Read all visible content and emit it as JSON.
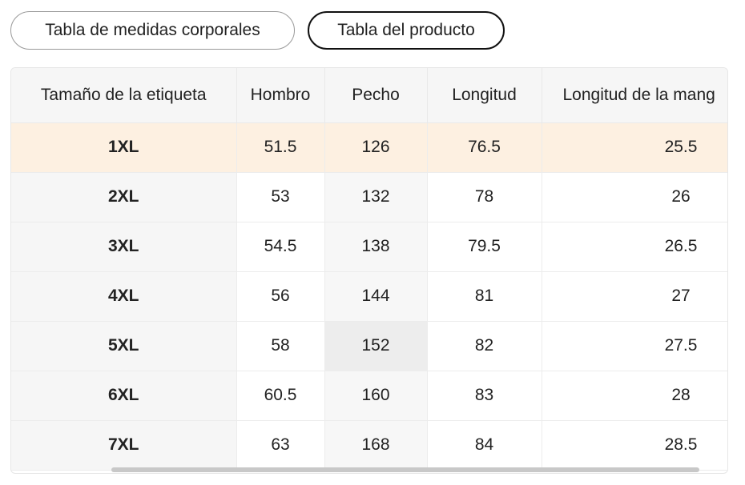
{
  "tabs": [
    {
      "label": "Tabla de medidas corporales",
      "active": false
    },
    {
      "label": "Tabla del producto",
      "active": true
    }
  ],
  "table": {
    "headers": [
      "Tamaño de la etiqueta",
      "Hombro",
      "Pecho",
      "Longitud",
      "Longitud de la mang"
    ],
    "rows": [
      [
        "1XL",
        "51.5",
        "126",
        "76.5",
        "25.5"
      ],
      [
        "2XL",
        "53",
        "132",
        "78",
        "26"
      ],
      [
        "3XL",
        "54.5",
        "138",
        "79.5",
        "26.5"
      ],
      [
        "4XL",
        "56",
        "144",
        "81",
        "27"
      ],
      [
        "5XL",
        "58",
        "152",
        "82",
        "27.5"
      ],
      [
        "6XL",
        "60.5",
        "160",
        "83",
        "28"
      ],
      [
        "7XL",
        "63",
        "168",
        "84",
        "28.5"
      ]
    ]
  },
  "colors": {
    "highlight_row": "#fdf0e1",
    "header_bg": "#f6f6f6",
    "active_tab_border": "#111111"
  }
}
